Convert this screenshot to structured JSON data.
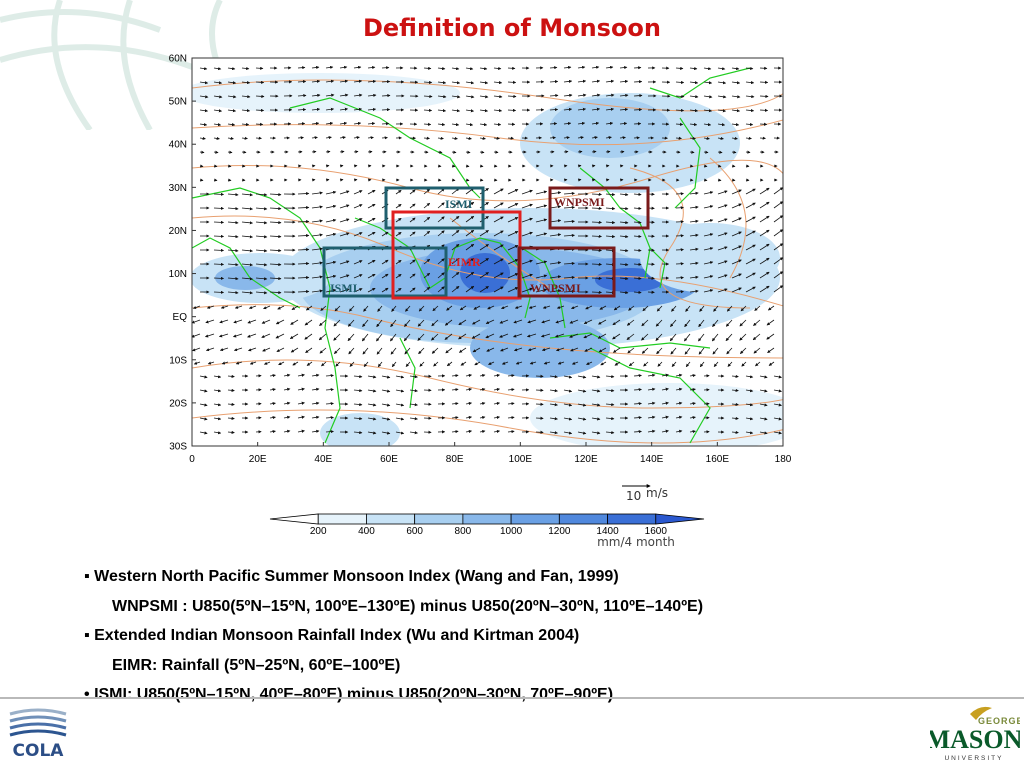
{
  "slide": {
    "title": "Definition of Monsoon"
  },
  "map": {
    "lat_labels": [
      "60N",
      "50N",
      "40N",
      "30N",
      "20N",
      "10N",
      "EQ",
      "10S",
      "20S",
      "30S"
    ],
    "lon_labels": [
      "0",
      "20E",
      "40E",
      "60E",
      "80E",
      "100E",
      "120E",
      "140E",
      "160E",
      "180"
    ],
    "boxes": {
      "ismi_north": {
        "label": "ISMI",
        "color": "#1f5f6e"
      },
      "ismi_south": {
        "label": "ISMI",
        "color": "#1f5f6e"
      },
      "eimr": {
        "label": "EIMR",
        "color": "#e02020"
      },
      "wnpsmi_north": {
        "label": "WNPSMI",
        "color": "#7a1a1a"
      },
      "wnpsmi_south": {
        "label": "WNPSMI",
        "color": "#7a1a1a"
      }
    }
  },
  "legend": {
    "vector_ref_value": "10",
    "vector_ref_unit": "m/s",
    "colorbar_ticks": [
      "200",
      "400",
      "600",
      "800",
      "1000",
      "1200",
      "1400",
      "1600"
    ],
    "colorbar_unit": "mm/4 month",
    "colors": [
      "#ffffff",
      "#e6f3fb",
      "#c8e3f6",
      "#a8cff0",
      "#89b8ea",
      "#6aa0e4",
      "#5088dd",
      "#3a6fd6",
      "#2a58cf"
    ]
  },
  "bullets": [
    {
      "marker": "▪",
      "text": "Western North Pacific Summer Monsoon Index (Wang and Fan, 1999)"
    },
    {
      "marker": "",
      "text": "WNPSMI : U850(5ºN–15ºN, 100ºE–130ºE) minus U850(20ºN–30ºN, 110ºE–140ºE)"
    },
    {
      "marker": "▪",
      "text": "Extended Indian Monsoon Rainfall Index (Wu and Kirtman 2004)"
    },
    {
      "marker": "",
      "text": "EIMR: Rainfall (5ºN–25ºN, 60ºE–100ºE)"
    },
    {
      "marker": "•",
      "text": "ISMI:  U850(5ºN–15ºN, 40ºE–80ºE) minus U850(20ºN–30ºN, 70ºE–90ºE)"
    }
  ],
  "footer": {
    "left_logo_text": "COLA",
    "right_logo_top": "GEORGE",
    "right_logo_main": "MASON",
    "right_logo_bottom": "UNIVERSITY"
  }
}
